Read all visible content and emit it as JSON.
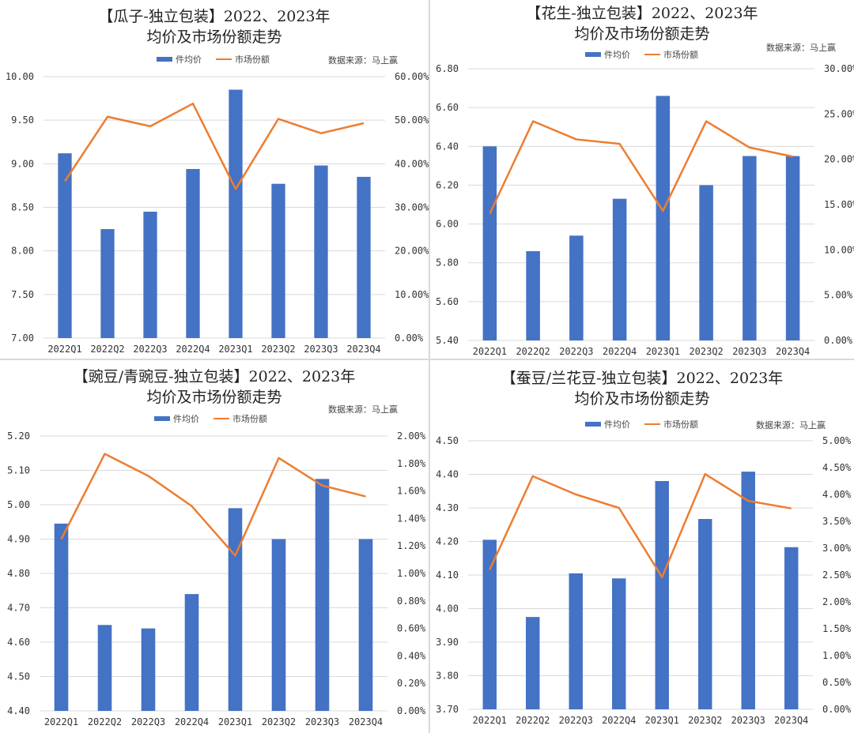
{
  "chart_data": [
    {
      "type": "bar",
      "title_line1": "【瓜子-独立包装】2022、2023年",
      "title_line2": "均价及市场份额走势",
      "source": "数据来源：马上赢",
      "legend": [
        "件均价",
        "市场份额"
      ],
      "legend_placement": "top",
      "categories": [
        "2022Q1",
        "2022Q2",
        "2022Q3",
        "2022Q4",
        "2023Q1",
        "2023Q2",
        "2023Q3",
        "2023Q4"
      ],
      "series": [
        {
          "name": "件均价",
          "type": "bar",
          "axis": "left",
          "values": [
            9.12,
            8.25,
            8.45,
            8.94,
            9.85,
            8.77,
            8.98,
            8.85
          ]
        },
        {
          "name": "市场份额",
          "type": "line",
          "axis": "right",
          "values": [
            0.36,
            0.508,
            0.486,
            0.538,
            0.342,
            0.503,
            0.47,
            0.493
          ]
        }
      ],
      "ylim_left": [
        7.0,
        10.0
      ],
      "yticks_left": [
        "7.00",
        "7.50",
        "8.00",
        "8.50",
        "9.00",
        "9.50",
        "10.00"
      ],
      "ylim_right": [
        0,
        0.6
      ],
      "yticks_right": [
        "0.00%",
        "10.00%",
        "20.00%",
        "30.00%",
        "40.00%",
        "50.00%",
        "60.00%"
      ],
      "grid": true
    },
    {
      "type": "bar",
      "title_line1": "【花生-独立包装】2022、2023年",
      "title_line2": "均价及市场份额走势",
      "source": "数据来源：马上赢",
      "legend": [
        "件均价",
        "市场份额"
      ],
      "legend_placement": "top",
      "categories": [
        "2022Q1",
        "2022Q2",
        "2022Q3",
        "2022Q4",
        "2023Q1",
        "2023Q2",
        "2023Q3",
        "2023Q4"
      ],
      "series": [
        {
          "name": "件均价",
          "type": "bar",
          "axis": "left",
          "values": [
            6.4,
            5.86,
            5.94,
            6.13,
            6.66,
            6.2,
            6.35,
            6.35
          ]
        },
        {
          "name": "市场份额",
          "type": "line",
          "axis": "right",
          "values": [
            0.14,
            0.242,
            0.222,
            0.217,
            0.143,
            0.242,
            0.213,
            0.203
          ]
        }
      ],
      "ylim_left": [
        5.4,
        6.8
      ],
      "yticks_left": [
        "5.40",
        "5.60",
        "5.80",
        "6.00",
        "6.20",
        "6.40",
        "6.60",
        "6.80"
      ],
      "ylim_right": [
        0,
        0.3
      ],
      "yticks_right": [
        "0.00%",
        "5.00%",
        "10.00%",
        "15.00%",
        "20.00%",
        "25.00%",
        "30.00%"
      ],
      "grid": true
    },
    {
      "type": "bar",
      "title_line1": "【豌豆/青豌豆-独立包装】2022、2023年",
      "title_line2": "均价及市场份额走势",
      "source": "数据来源：马上赢",
      "legend": [
        "件均价",
        "市场份额"
      ],
      "legend_placement": "top",
      "categories": [
        "2022Q1",
        "2022Q2",
        "2022Q3",
        "2022Q4",
        "2023Q1",
        "2023Q2",
        "2023Q3",
        "2023Q4"
      ],
      "series": [
        {
          "name": "件均价",
          "type": "bar",
          "axis": "left",
          "values": [
            4.945,
            4.65,
            4.64,
            4.74,
            4.99,
            4.9,
            5.075,
            4.9
          ]
        },
        {
          "name": "市场份额",
          "type": "line",
          "axis": "right",
          "values": [
            0.0125,
            0.0187,
            0.0171,
            0.0149,
            0.0113,
            0.0184,
            0.0164,
            0.0156
          ]
        }
      ],
      "ylim_left": [
        4.4,
        5.2
      ],
      "yticks_left": [
        "4.40",
        "4.50",
        "4.60",
        "4.70",
        "4.80",
        "4.90",
        "5.00",
        "5.10",
        "5.20"
      ],
      "ylim_right": [
        0,
        0.02
      ],
      "yticks_right": [
        "0.00%",
        "0.20%",
        "0.40%",
        "0.60%",
        "0.80%",
        "1.00%",
        "1.20%",
        "1.40%",
        "1.60%",
        "1.80%",
        "2.00%"
      ],
      "grid": true
    },
    {
      "type": "bar",
      "title_line1": "【蚕豆/兰花豆-独立包装】2022、2023年",
      "title_line2": "均价及市场份额走势",
      "source": "数据来源：马上赢",
      "legend": [
        "件均价",
        "市场份额"
      ],
      "legend_placement": "top",
      "categories": [
        "2022Q1",
        "2022Q2",
        "2022Q3",
        "2022Q4",
        "2023Q1",
        "2023Q2",
        "2023Q3",
        "2023Q4"
      ],
      "series": [
        {
          "name": "件均价",
          "type": "bar",
          "axis": "left",
          "values": [
            4.205,
            3.975,
            4.105,
            4.09,
            4.38,
            4.267,
            4.408,
            4.183
          ]
        },
        {
          "name": "市场份额",
          "type": "line",
          "axis": "right",
          "values": [
            0.026,
            0.0434,
            0.04,
            0.0375,
            0.0246,
            0.0438,
            0.0388,
            0.0374
          ]
        }
      ],
      "ylim_left": [
        3.7,
        4.5
      ],
      "yticks_left": [
        "3.70",
        "3.80",
        "3.90",
        "4.00",
        "4.10",
        "4.20",
        "4.30",
        "4.40",
        "4.50"
      ],
      "ylim_right": [
        0,
        0.05
      ],
      "yticks_right": [
        "0.00%",
        "0.50%",
        "1.00%",
        "1.50%",
        "2.00%",
        "2.50%",
        "3.00%",
        "3.50%",
        "4.00%",
        "4.50%",
        "5.00%"
      ],
      "grid": true
    }
  ],
  "colors": {
    "bar": "#4472C4",
    "line": "#ED7D31",
    "grid": "#d9d9d9"
  }
}
